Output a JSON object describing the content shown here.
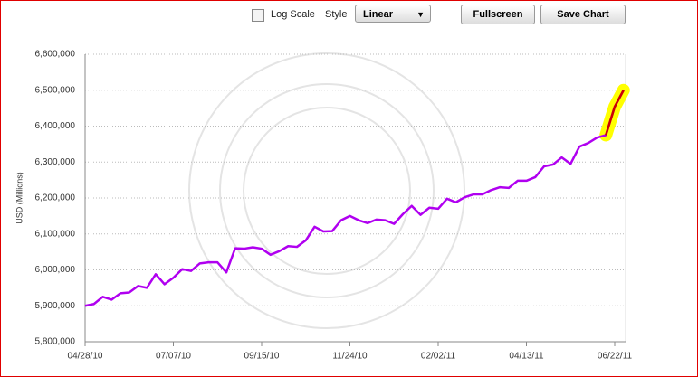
{
  "controls": {
    "log_scale_label": "Log Scale",
    "style_label": "Style",
    "style_value": "Linear",
    "fullscreen": "Fullscreen",
    "save_chart": "Save Chart"
  },
  "chart_data": {
    "type": "line",
    "y_label": "USD (Millions)",
    "log_scale": false,
    "grid": true,
    "categories": [
      "04/28/10",
      null,
      null,
      null,
      null,
      null,
      null,
      null,
      null,
      null,
      "07/07/10",
      null,
      null,
      null,
      null,
      null,
      null,
      null,
      null,
      null,
      "09/15/10",
      null,
      null,
      null,
      null,
      null,
      null,
      null,
      null,
      null,
      "11/24/10",
      null,
      null,
      null,
      null,
      null,
      null,
      null,
      null,
      null,
      "02/02/11",
      null,
      null,
      null,
      null,
      null,
      null,
      null,
      null,
      null,
      "04/13/11",
      null,
      null,
      null,
      null,
      null,
      null,
      null,
      null,
      null,
      "06/22/11",
      null
    ],
    "series": [
      {
        "color": "#b000f0",
        "values": [
          5900000,
          5905000,
          5925000,
          5917000,
          5935000,
          5937000,
          5955000,
          5950000,
          5988000,
          5960000,
          5978000,
          6002000,
          5997000,
          6018000,
          6021000,
          6021000,
          5993000,
          6060000,
          6059000,
          6063000,
          6059000,
          6042000,
          6052000,
          6066000,
          6064000,
          6082000,
          6120000,
          6107000,
          6108000,
          6138000,
          6150000,
          6138000,
          6130000,
          6140000,
          6138000,
          6128000,
          6155000,
          6178000,
          6153000,
          6173000,
          6170000,
          6198000,
          6188000,
          6202000,
          6210000,
          6210000,
          6222000,
          6230000,
          6228000,
          6248000,
          6248000,
          6258000,
          6288000,
          6293000,
          6313000,
          6295000,
          6343000,
          6353000,
          6368000,
          6375000,
          6454000,
          6500000
        ]
      }
    ],
    "highlight": {
      "from": 59,
      "color": "#cc0000",
      "glow": "#ffff00"
    },
    "ylim": [
      5800000,
      6600000
    ],
    "yticks": [
      {
        "value": 5800000,
        "label": "5,800,000"
      },
      {
        "value": 5900000,
        "label": "5,900,000"
      },
      {
        "value": 6000000,
        "label": "6,000,000"
      },
      {
        "value": 6100000,
        "label": "6,100,000"
      },
      {
        "value": 6200000,
        "label": "6,200,000"
      },
      {
        "value": 6300000,
        "label": "6,300,000"
      },
      {
        "value": 6400000,
        "label": "6,400,000"
      },
      {
        "value": 6500000,
        "label": "6,500,000"
      },
      {
        "value": 6600000,
        "label": "6,600,000"
      }
    ]
  }
}
